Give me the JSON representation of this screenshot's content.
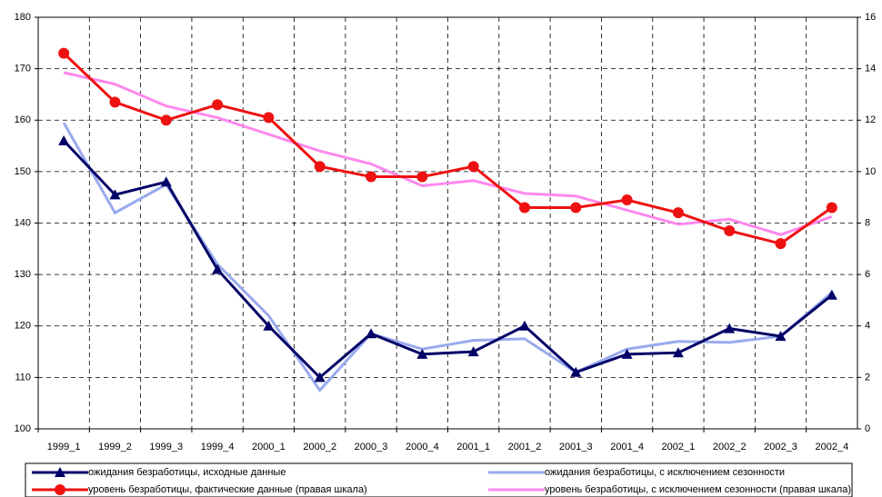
{
  "chart_data": {
    "type": "line",
    "categories": [
      "1999_1",
      "1999_2",
      "1999_3",
      "1999_4",
      "2000_1",
      "2000_2",
      "2000_3",
      "2000_4",
      "2001_1",
      "2001_2",
      "2001_3",
      "2001_4",
      "2002_1",
      "2002_2",
      "2002_3",
      "2002_4"
    ],
    "ylim": [
      100,
      180
    ],
    "yticks": [
      100,
      110,
      120,
      130,
      140,
      150,
      160,
      170,
      180
    ],
    "y2lim": [
      0,
      16
    ],
    "y2ticks": [
      0,
      2,
      4,
      6,
      8,
      10,
      12,
      14,
      16
    ],
    "grid": true,
    "series": [
      {
        "name": "ожидания безработицы, исходные данные",
        "color": "#000066",
        "marker": "triangle",
        "values": [
          156,
          145.5,
          148,
          131,
          120,
          110,
          118.5,
          114.5,
          115,
          120,
          111,
          114.5,
          114.8,
          119.5,
          118,
          126
        ]
      },
      {
        "name": "ожидания безработицы, с исключением сезонности",
        "color": "#99aaee",
        "marker": "none",
        "values": [
          159.5,
          142,
          147.5,
          132,
          122,
          107.5,
          118.5,
          115.5,
          117.2,
          117.5,
          111,
          115.5,
          117,
          116.8,
          118,
          126.5
        ]
      },
      {
        "name": "уровень безработицы, фактические данные (правая шкала)",
        "color": "#ee1111",
        "marker": "circle",
        "axis": "y2",
        "values": [
          14.6,
          12.7,
          12.0,
          12.6,
          12.1,
          10.2,
          9.8,
          9.8,
          10.2,
          8.6,
          8.6,
          8.9,
          8.4,
          7.7,
          7.2,
          8.6
        ]
      },
      {
        "name": "уровень безработицы, с исключением сезонности (правая шкала)",
        "color": "#ff88ee",
        "marker": "none",
        "axis": "y2",
        "values": [
          13.85,
          13.4,
          12.55,
          12.1,
          11.45,
          10.8,
          10.3,
          9.45,
          9.65,
          9.15,
          9.05,
          8.5,
          7.95,
          8.15,
          7.55,
          8.25
        ]
      }
    ]
  }
}
